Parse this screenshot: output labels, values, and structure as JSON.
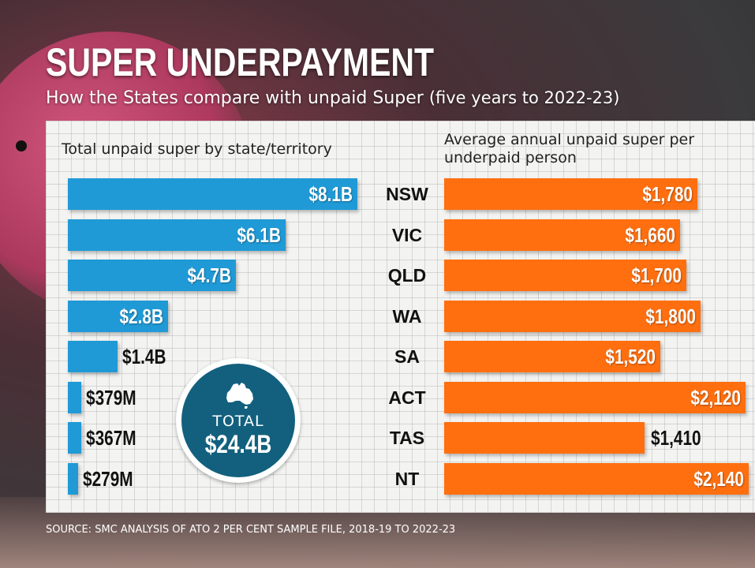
{
  "header": {
    "title": "SUPER UNDERPAYMENT",
    "subtitle": "How the States compare with unpaid Super",
    "subtitle_note": "(five years to 2022-23)"
  },
  "total": {
    "label": "TOTAL",
    "value": "$24.4B"
  },
  "source": "SOURCE: SMC ANALYSIS OF ATO 2 PER CENT SAMPLE FILE, 2018-19 TO 2022-23",
  "colors": {
    "left_bar": "#1f9ad6",
    "right_bar": "#ff6f0f",
    "total_circle": "#12607e"
  },
  "chart_data": [
    {
      "type": "bar",
      "orientation": "horizontal",
      "title": "Total unpaid super by state/territory",
      "categories": [
        "NSW",
        "VIC",
        "QLD",
        "WA",
        "SA",
        "ACT",
        "TAS",
        "NT"
      ],
      "values": [
        8100,
        6100,
        4700,
        2800,
        1400,
        379,
        367,
        279
      ],
      "units": "$M",
      "labels": [
        "$8.1B",
        "$6.1B",
        "$4.7B",
        "$2.8B",
        "$1.4B",
        "$379M",
        "$367M",
        "$279M"
      ]
    },
    {
      "type": "bar",
      "orientation": "horizontal",
      "title": "Average annual unpaid super per underpaid person",
      "categories": [
        "NSW",
        "VIC",
        "QLD",
        "WA",
        "SA",
        "ACT",
        "TAS",
        "NT"
      ],
      "values": [
        1780,
        1660,
        1700,
        1800,
        1520,
        2120,
        1410,
        2140
      ],
      "labels": [
        "$1,780",
        "$1,660",
        "$1,700",
        "$1,800",
        "$1,520",
        "$2,120",
        "$1,410",
        "$2,140"
      ]
    }
  ]
}
